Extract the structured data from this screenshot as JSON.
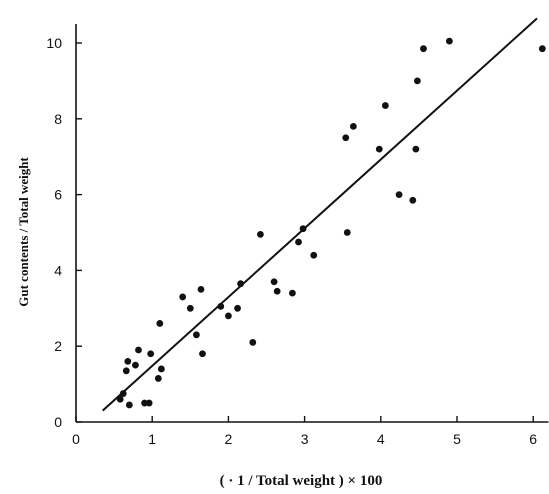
{
  "chart_data": {
    "type": "scatter",
    "title": "",
    "xlabel": "( · 1 / Total weight ) × 100",
    "ylabel": "Gut contents / Total weight",
    "xlim": [
      0,
      6.2
    ],
    "ylim": [
      0,
      10.5
    ],
    "xticks": [
      0,
      1,
      2,
      3,
      4,
      5,
      6
    ],
    "yticks": [
      0,
      2,
      4,
      6,
      8,
      10
    ],
    "xtick_labels": [
      "0",
      "1",
      "2",
      "3",
      "4",
      "5",
      "6"
    ],
    "ytick_labels": [
      "0",
      "2",
      "4",
      "6",
      "8",
      "10"
    ],
    "grid": false,
    "series": [
      {
        "points": [
          [
            0.58,
            0.6
          ],
          [
            0.62,
            0.75
          ],
          [
            0.66,
            1.35
          ],
          [
            0.68,
            1.6
          ],
          [
            0.7,
            0.45
          ],
          [
            0.78,
            1.5
          ],
          [
            0.82,
            1.9
          ],
          [
            0.9,
            0.5
          ],
          [
            0.96,
            0.5
          ],
          [
            0.98,
            1.8
          ],
          [
            1.08,
            1.15
          ],
          [
            1.1,
            2.6
          ],
          [
            1.12,
            1.4
          ],
          [
            1.4,
            3.3
          ],
          [
            1.5,
            3.0
          ],
          [
            1.58,
            2.3
          ],
          [
            1.64,
            3.5
          ],
          [
            1.66,
            1.8
          ],
          [
            1.9,
            3.05
          ],
          [
            2.0,
            2.8
          ],
          [
            2.12,
            3.0
          ],
          [
            2.16,
            3.65
          ],
          [
            2.32,
            2.1
          ],
          [
            2.42,
            4.95
          ],
          [
            2.6,
            3.7
          ],
          [
            2.64,
            3.45
          ],
          [
            2.84,
            3.4
          ],
          [
            2.92,
            4.75
          ],
          [
            2.98,
            5.1
          ],
          [
            3.12,
            4.4
          ],
          [
            3.54,
            7.5
          ],
          [
            3.56,
            5.0
          ],
          [
            3.64,
            7.8
          ],
          [
            3.98,
            7.2
          ],
          [
            4.06,
            8.35
          ],
          [
            4.24,
            6.0
          ],
          [
            4.42,
            5.85
          ],
          [
            4.46,
            7.2
          ],
          [
            4.48,
            9.0
          ],
          [
            4.56,
            9.85
          ],
          [
            4.9,
            10.05
          ],
          [
            6.12,
            9.85
          ]
        ]
      }
    ],
    "fit_line": {
      "x": [
        0.35,
        6.05
      ],
      "y": [
        0.3,
        10.65
      ]
    }
  }
}
